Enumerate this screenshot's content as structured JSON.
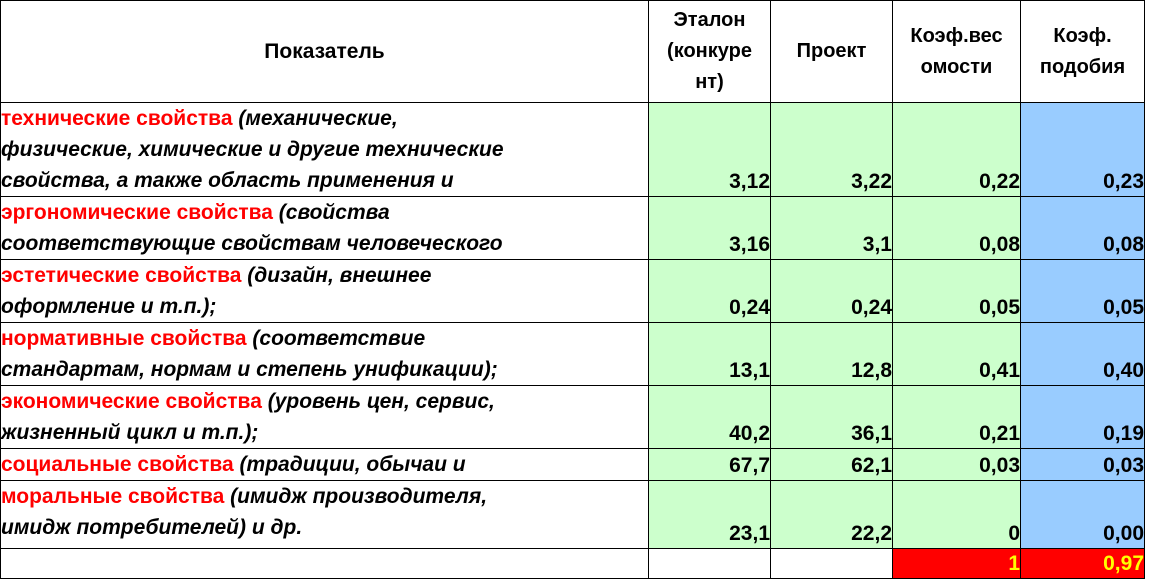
{
  "header": {
    "indicator": "Показатель",
    "etalon": [
      "Эталон",
      "(конкуре",
      "нт)"
    ],
    "project": "Проект",
    "weight": [
      "Коэф.вес",
      "омости"
    ],
    "similarity": [
      "Коэф.",
      "подобия"
    ]
  },
  "rows": [
    {
      "name": "технические свойства",
      "desc_lines": [
        " (механические,",
        "физические, химические и другие технические",
        "свойства, а также область применения и"
      ],
      "etalon": "3,12",
      "project": "3,22",
      "weight": "0,22",
      "similarity": "0,23"
    },
    {
      "name": "эргономические свойства",
      "desc_lines": [
        " (свойства",
        "соответствующие свойствам человеческого"
      ],
      "etalon": "3,16",
      "project": "3,1",
      "weight": "0,08",
      "similarity": "0,08"
    },
    {
      "name": "эстетические свойства",
      "desc_lines": [
        " (дизайн, внешнее",
        "оформление и т.п.);"
      ],
      "etalon": "0,24",
      "project": "0,24",
      "weight": "0,05",
      "similarity": "0,05"
    },
    {
      "name": "нормативные свойства",
      "desc_lines": [
        " (соответствие",
        "стандартам, нормам и степень унификации);"
      ],
      "etalon": "13,1",
      "project": "12,8",
      "weight": "0,41",
      "similarity": "0,40"
    },
    {
      "name": "экономические свойства",
      "desc_lines": [
        " (уровень цен, сервис,",
        "жизненный цикл и т.п.);"
      ],
      "etalon": "40,2",
      "project": "36,1",
      "weight": "0,21",
      "similarity": "0,19"
    },
    {
      "name": "социальные свойства",
      "desc_lines": [
        " (традиции, обычаи и"
      ],
      "etalon": "67,7",
      "project": "62,1",
      "weight": "0,03",
      "similarity": "0,03"
    },
    {
      "name": "моральные свойства",
      "desc_lines": [
        " (имидж производителя,",
        "имидж потребителей) и др."
      ],
      "etalon": "23,1",
      "project": "22,2",
      "weight": "0",
      "similarity": "0,00"
    }
  ],
  "totals": {
    "weight": "1",
    "similarity": "0,97"
  },
  "colors": {
    "green_cell": "#ccffcc",
    "blue_cell": "#99ccff",
    "total_fill": "#ff0000",
    "total_text": "#ffff00",
    "property_name": "#ff0000"
  }
}
